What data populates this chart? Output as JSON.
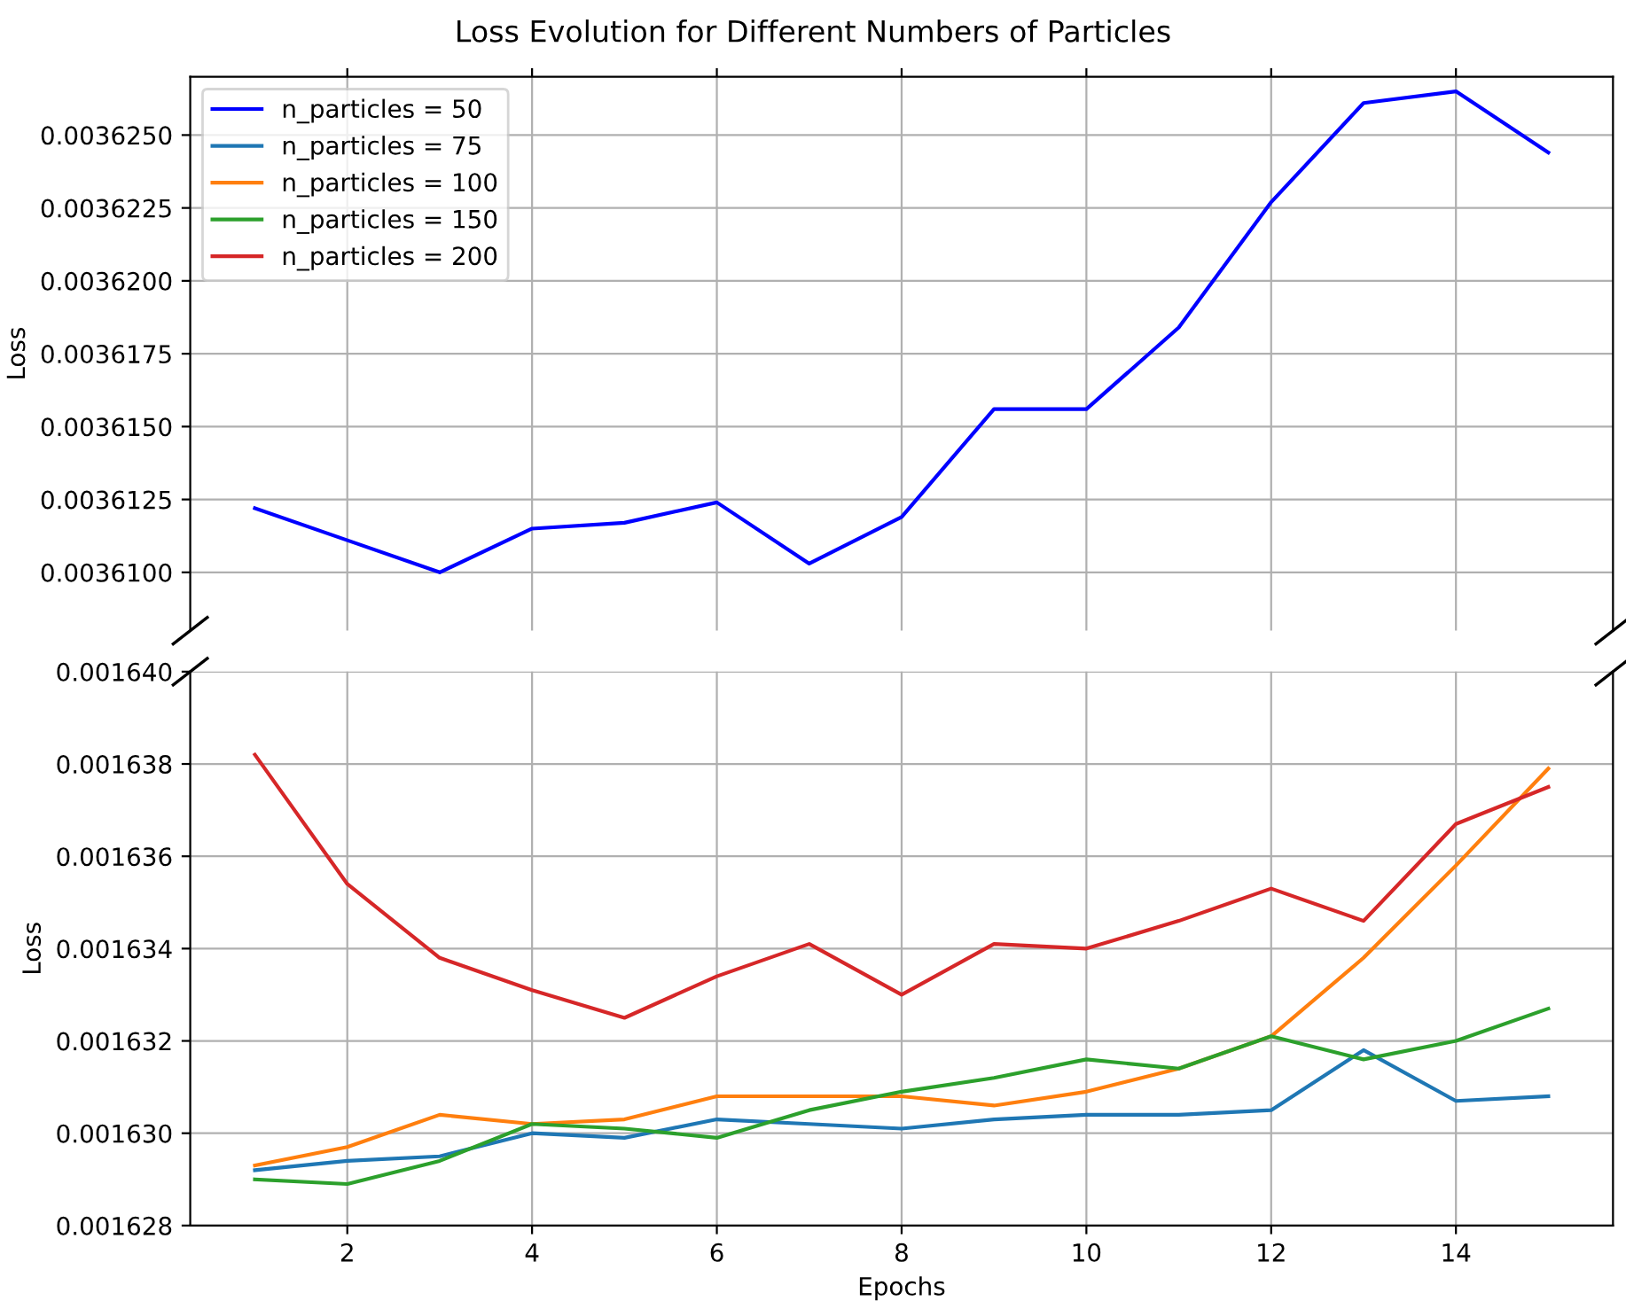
{
  "chart_data": [
    {
      "type": "line",
      "title": "Loss Evolution for Different Numbers of Particles",
      "ylabel": "Loss",
      "x": [
        1,
        2,
        3,
        4,
        5,
        6,
        7,
        8,
        9,
        10,
        11,
        12,
        13,
        14,
        15
      ],
      "xlim": [
        0.3,
        15.7
      ],
      "xticks": [
        2,
        4,
        6,
        8,
        10,
        12,
        14
      ],
      "tick_labels": "y",
      "ylim": [
        0.003608,
        0.003627
      ],
      "yticks": [
        {
          "value": 0.00361,
          "label": "0.0036100"
        },
        {
          "value": 0.0036125,
          "label": "0.0036125"
        },
        {
          "value": 0.003615,
          "label": "0.0036150"
        },
        {
          "value": 0.0036175,
          "label": "0.0036175"
        },
        {
          "value": 0.00362,
          "label": "0.0036200"
        },
        {
          "value": 0.0036225,
          "label": "0.0036225"
        },
        {
          "value": 0.003625,
          "label": "0.0036250"
        }
      ],
      "grid": true,
      "legend": "top left",
      "series": [
        {
          "name": "n_particles = 50",
          "color": "#0000ff",
          "values": [
            0.0036122,
            0.0036111,
            0.00361,
            0.0036115,
            0.0036117,
            0.0036124,
            0.0036103,
            0.0036119,
            0.0036156,
            0.0036156,
            0.0036184,
            0.0036227,
            0.0036261,
            0.0036265,
            0.0036244
          ]
        }
      ]
    },
    {
      "type": "line",
      "xlabel": "Epochs",
      "ylabel": "Loss",
      "x": [
        1,
        2,
        3,
        4,
        5,
        6,
        7,
        8,
        9,
        10,
        11,
        12,
        13,
        14,
        15
      ],
      "xlim": [
        0.3,
        15.7
      ],
      "xticks": [
        2,
        4,
        6,
        8,
        10,
        12,
        14
      ],
      "ylim": [
        0.001628,
        0.00164
      ],
      "yticks": [
        0.001628,
        {
          "value": 0.00163,
          "label": "0.001630"
        },
        0.001632,
        0.001634,
        0.001636,
        0.001638,
        {
          "value": 0.00164,
          "label": "0.001640"
        }
      ],
      "grid": true,
      "legend": "top left",
      "series": [
        {
          "name": "n_particles = 75",
          "color": "#1f77b4",
          "values": [
            0.0016292,
            0.0016294,
            0.0016295,
            0.00163,
            0.0016299,
            0.0016303,
            0.0016302,
            0.0016301,
            0.0016303,
            0.0016304,
            0.0016304,
            0.0016305,
            0.0016318,
            0.0016307,
            0.0016308
          ]
        },
        {
          "name": "n_particles = 100",
          "color": "#ff7f0e",
          "values": [
            0.0016293,
            0.0016297,
            0.0016304,
            0.0016302,
            0.0016303,
            0.0016308,
            0.0016308,
            0.0016308,
            0.0016306,
            0.0016309,
            0.0016314,
            0.0016321,
            0.0016338,
            0.0016358,
            0.0016379
          ]
        },
        {
          "name": "n_particles = 150",
          "color": "#2ca02c",
          "values": [
            0.001629,
            0.0016289,
            0.0016294,
            0.0016302,
            0.0016301,
            0.0016299,
            0.0016305,
            0.0016309,
            0.0016312,
            0.0016316,
            0.0016314,
            0.0016321,
            0.0016316,
            0.001632,
            0.0016327
          ]
        },
        {
          "name": "n_particles = 200",
          "color": "#d62728",
          "values": [
            0.0016382,
            0.0016354,
            0.0016338,
            0.0016331,
            0.0016325,
            0.0016334,
            0.0016341,
            0.001633,
            0.0016341,
            0.001634,
            0.0016346,
            0.0016353,
            0.0016346,
            0.0016367,
            0.0016375
          ]
        }
      ]
    }
  ]
}
